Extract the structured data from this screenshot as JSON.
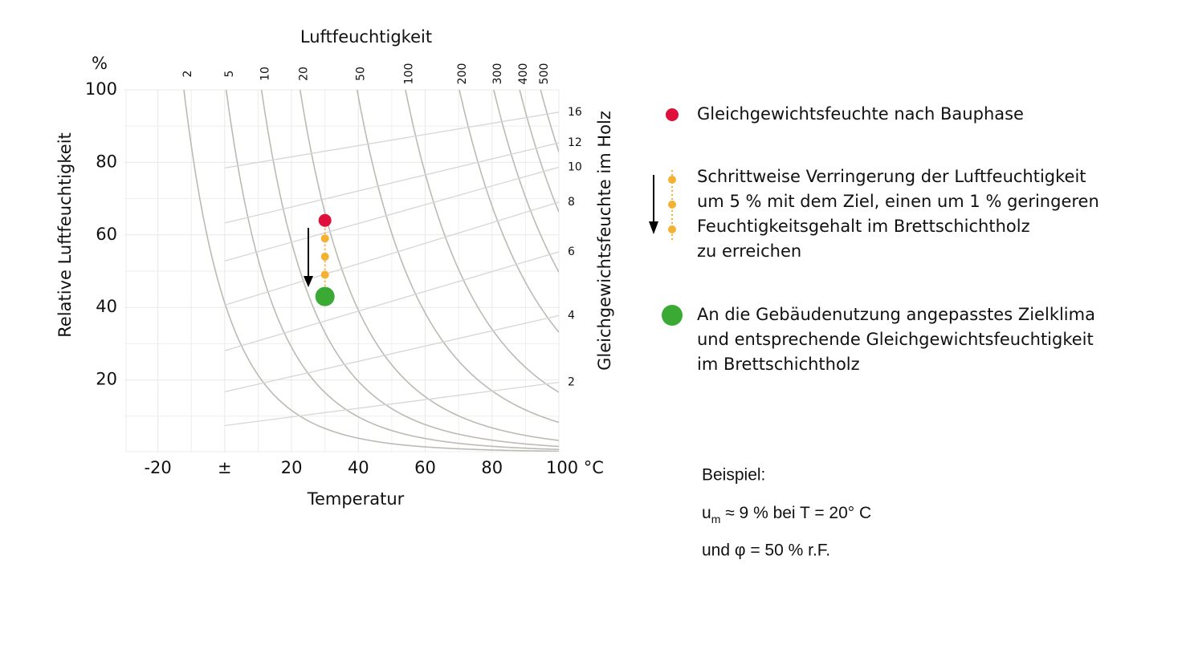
{
  "chart_data": {
    "type": "scatter",
    "x_label": "Temperatur",
    "y_label": "Relative Luftfeuchtigkeit",
    "y_unit": "%",
    "xlim": [
      -30,
      100
    ],
    "ylim": [
      0,
      100
    ],
    "xticks": [
      -20,
      {
        "value": 0,
        "label": "±"
      },
      20,
      40,
      60,
      80,
      {
        "value": 100,
        "label": "100 °C"
      }
    ],
    "yticks": [
      20,
      40,
      60,
      80,
      100
    ],
    "grid": true,
    "top_axis": {
      "label": "Luftfeuchtigkeit",
      "values": [
        2,
        5,
        10,
        20,
        50,
        100,
        200,
        300,
        400,
        500
      ],
      "color": "#bdbab4"
    },
    "right_axis": {
      "label": "Gleichgewichtsfeuchte im Holz",
      "values": [
        16,
        12,
        10,
        8,
        6,
        4,
        2
      ],
      "color": "#d6d6d6"
    },
    "series": [
      {
        "name": "Gleichgewichtsfeuchte nach Bauphase",
        "color": "#e0103c",
        "x": [
          30
        ],
        "values": [
          64
        ]
      },
      {
        "name": "Schrittweise Verringerung der Luftfeuchtigkeit\num 5 % mit dem Ziel, einen um 1 % geringeren\nFeuchtigkeitsgehalt im Brettschichtholz\nzu erreichen",
        "color": "#f4b132",
        "x": [
          30,
          30,
          30
        ],
        "values": [
          59,
          54,
          49
        ]
      },
      {
        "name": "An die Gebäudenutzung angepasstes Zielklima\nund entsprechende Gleichgewichtsfeuchtigkeit\nim Brettschichtholz",
        "color": "#3aaa35",
        "x": [
          30
        ],
        "values": [
          43
        ]
      }
    ]
  },
  "example": {
    "title": "Beispiel:",
    "symbol": "u",
    "subscript": "m",
    "line1": " ≈ 9 % bei T = 20° C",
    "line2": "und φ = 50 % r.F."
  }
}
